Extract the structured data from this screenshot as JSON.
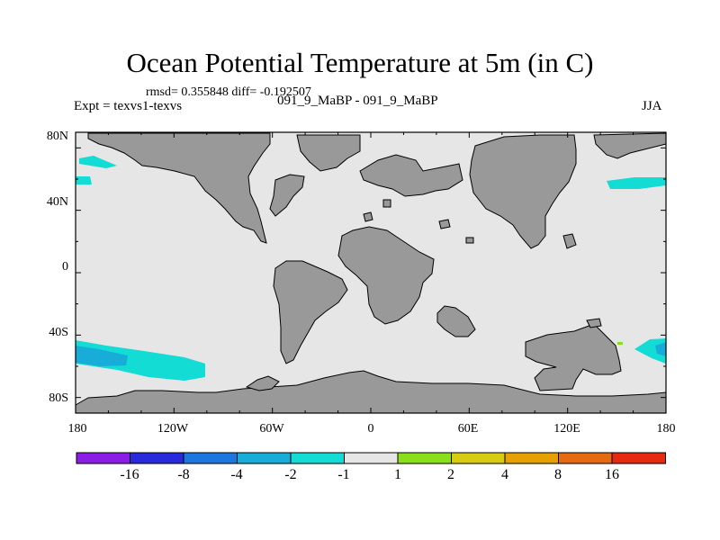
{
  "chart_data": {
    "type": "heatmap",
    "title": "Ocean Potential Temperature at 5m (in C)",
    "stats": "rmsd= 0.355848 diff= -0.192507",
    "experiment": "Expt = texvs1-texvs",
    "subtitle": "091_9_MaBP - 091_9_MaBP",
    "season": "JJA",
    "x_ticks": [
      "180",
      "120W",
      "60W",
      "0",
      "60E",
      "120E",
      "180"
    ],
    "y_ticks": [
      "80N",
      "40N",
      "0",
      "40S",
      "80S"
    ],
    "lon_range": [
      -180,
      180
    ],
    "lat_range": [
      -90,
      90
    ],
    "colorbar": {
      "labels": [
        "-16",
        "-8",
        "-4",
        "-2",
        "-1",
        "1",
        "2",
        "4",
        "8",
        "16"
      ],
      "colors": [
        "#8a1ee6",
        "#2a2add",
        "#1c78e0",
        "#18acd8",
        "#12dcd4",
        "#e6e6e6",
        "#8ade1a",
        "#d8cc10",
        "#e6a000",
        "#e66a10",
        "#e62a10"
      ]
    },
    "colors": {
      "land": "#999999",
      "ocean_zero": "#e6e6e6",
      "anomaly_cool_weak": "#12dcd4",
      "anomaly_cool": "#18acd8",
      "anomaly_warm": "#8ade1a"
    }
  }
}
